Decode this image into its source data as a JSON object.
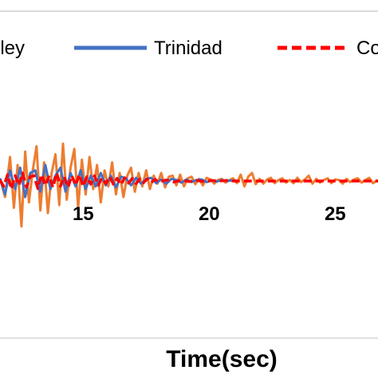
{
  "chart_data": {
    "type": "line",
    "xlabel": "Time(sec)",
    "ylabel": "",
    "xlim": [
      11.7,
      26.7
    ],
    "ylim": [
      -1.0,
      1.0
    ],
    "x_ticks": [
      "15",
      "20",
      "25"
    ],
    "x_tick_values": [
      15,
      20,
      25
    ],
    "legend": {
      "placement": "top",
      "entries": [
        "lley",
        "Trinidad",
        "Co"
      ]
    },
    "grid": false,
    "series": [
      {
        "name": "lley",
        "legend_label": "lley",
        "color": "#ED7D31",
        "style": "solid",
        "x": [
          11.7,
          11.9,
          12.1,
          12.25,
          12.4,
          12.55,
          12.7,
          12.85,
          13.0,
          13.15,
          13.3,
          13.45,
          13.6,
          13.75,
          13.9,
          14.05,
          14.2,
          14.35,
          14.5,
          14.65,
          14.8,
          14.95,
          15.1,
          15.25,
          15.4,
          15.55,
          15.7,
          15.85,
          16.0,
          16.15,
          16.3,
          16.45,
          16.6,
          16.75,
          16.9,
          17.05,
          17.2,
          17.35,
          17.5,
          17.65,
          17.8,
          17.95,
          18.1,
          18.25,
          18.4,
          18.55,
          18.7,
          18.85,
          19.0,
          19.15,
          19.3,
          19.45,
          19.6,
          19.75,
          19.9,
          20.05,
          20.2,
          20.35,
          20.5,
          20.65,
          20.8,
          20.95,
          21.1,
          21.25,
          21.4,
          21.55,
          21.7,
          21.85,
          22.0,
          22.15,
          22.3,
          22.45,
          22.6,
          22.75,
          22.9,
          23.05,
          23.2,
          23.35,
          23.5,
          23.65,
          23.8,
          23.95,
          24.1,
          24.25,
          24.4,
          24.55,
          24.7,
          24.85,
          25.0,
          25.15,
          25.3,
          25.45,
          25.6,
          25.75,
          25.9,
          26.05,
          26.2,
          26.35,
          26.5,
          26.7
        ],
        "values": [
          0.05,
          -0.3,
          0.45,
          -0.5,
          0.3,
          -0.85,
          0.55,
          -0.4,
          0.2,
          0.65,
          -0.55,
          0.35,
          -0.6,
          0.15,
          0.5,
          -0.45,
          0.7,
          -0.35,
          0.25,
          0.6,
          -0.5,
          0.4,
          -0.25,
          0.45,
          -0.15,
          0.3,
          -0.4,
          0.2,
          -0.1,
          0.35,
          -0.25,
          0.15,
          -0.3,
          0.1,
          0.25,
          -0.2,
          0.15,
          -0.1,
          0.2,
          -0.15,
          0.1,
          -0.05,
          0.15,
          -0.12,
          0.08,
          0.1,
          -0.08,
          0.12,
          -0.1,
          0.05,
          0.08,
          -0.06,
          0.04,
          -0.08,
          0.06,
          0.03,
          -0.05,
          0.02,
          0.04,
          -0.03,
          0.02,
          0.05,
          -0.04,
          0.12,
          -0.1,
          0.08,
          0.15,
          -0.06,
          0.04,
          -0.05,
          0.03,
          0.06,
          -0.04,
          0.02,
          0.05,
          -0.03,
          0.02,
          -0.04,
          0.06,
          -0.02,
          0.03,
          0.1,
          -0.05,
          0.04,
          -0.03,
          0.02,
          0.05,
          -0.04,
          0.03,
          0.02,
          -0.05,
          0.04,
          -0.02,
          0.03,
          0.05,
          -0.03,
          0.02,
          0.06,
          -0.04,
          0.02
        ]
      },
      {
        "name": "Trinidad",
        "legend_label": "Trinidad",
        "color": "#4472C4",
        "style": "solid",
        "x": [
          11.7,
          11.9,
          12.1,
          12.3,
          12.5,
          12.7,
          12.9,
          13.1,
          13.3,
          13.5,
          13.7,
          13.9,
          14.1,
          14.3,
          14.5,
          14.7,
          14.9,
          15.1,
          15.3,
          15.5,
          15.7,
          15.9,
          16.1,
          16.3,
          16.5,
          16.7,
          16.9,
          17.1,
          17.3,
          17.5,
          17.7,
          17.9,
          18.1,
          18.3,
          18.5,
          18.7,
          18.9,
          19.1,
          19.3,
          19.5,
          19.7,
          19.9,
          20.1,
          20.3,
          20.5,
          20.7,
          20.9,
          21.1
        ],
        "values": [
          0.05,
          -0.25,
          0.2,
          -0.15,
          0.25,
          -0.3,
          0.15,
          0.2,
          -0.2,
          0.3,
          -0.15,
          0.1,
          0.25,
          -0.2,
          0.15,
          -0.1,
          0.2,
          -0.15,
          0.1,
          -0.1,
          0.15,
          -0.08,
          0.1,
          -0.12,
          0.08,
          0.05,
          -0.08,
          0.06,
          -0.05,
          0.04,
          0.06,
          -0.04,
          0.03,
          -0.05,
          0.04,
          0.02,
          -0.03,
          0.03,
          -0.02,
          0.02,
          0.03,
          -0.02,
          0.01,
          -0.01,
          0.02,
          0.0,
          0.01,
          0.0
        ]
      },
      {
        "name": "Co",
        "legend_label": "Co",
        "color": "#FF0000",
        "style": "dashed",
        "x": [
          11.7,
          11.85,
          12.0,
          12.15,
          12.3,
          12.45,
          12.6,
          12.75,
          12.9,
          13.05,
          13.2,
          13.35,
          13.5,
          13.65,
          13.8,
          13.95,
          14.1,
          14.25,
          14.4,
          14.55,
          14.7,
          14.85,
          15.0,
          15.15,
          15.3,
          15.45,
          15.6,
          15.75,
          15.9,
          16.05,
          16.2,
          16.35,
          16.5,
          16.65,
          16.8,
          16.95,
          17.1,
          17.25,
          17.4,
          17.55,
          17.7,
          17.85,
          18.0,
          18.3,
          18.6,
          18.9,
          19.2,
          19.5,
          19.8,
          20.1,
          20.4,
          20.7,
          21.0,
          21.5,
          22.0,
          22.5,
          23.0,
          23.5,
          24.0,
          24.5,
          25.0,
          25.5,
          26.0,
          26.7
        ],
        "values": [
          0.02,
          -0.1,
          0.12,
          -0.15,
          0.1,
          -0.08,
          0.15,
          -0.12,
          0.08,
          0.1,
          -0.14,
          0.12,
          -0.08,
          0.1,
          -0.12,
          0.15,
          -0.1,
          0.08,
          -0.12,
          0.1,
          -0.08,
          0.12,
          -0.1,
          0.08,
          -0.06,
          0.1,
          -0.08,
          0.06,
          -0.05,
          0.08,
          -0.06,
          0.05,
          -0.07,
          0.06,
          -0.04,
          0.05,
          -0.05,
          0.04,
          -0.03,
          0.04,
          -0.03,
          0.03,
          -0.02,
          0.02,
          -0.02,
          0.02,
          -0.01,
          0.01,
          -0.01,
          0.01,
          0.0,
          0.01,
          0.0,
          0.0,
          0.0,
          0.0,
          0.0,
          0.0,
          0.0,
          0.0,
          0.0,
          0.0,
          0.0,
          0.0
        ]
      }
    ]
  }
}
